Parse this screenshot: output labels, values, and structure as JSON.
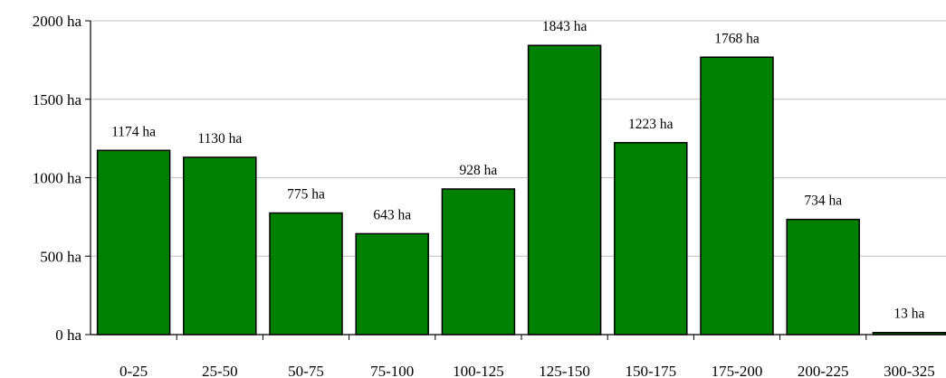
{
  "chart_data": {
    "type": "bar",
    "categories": [
      "0-25",
      "25-50",
      "50-75",
      "75-100",
      "100-125",
      "125-150",
      "150-175",
      "175-200",
      "200-225",
      "300-325"
    ],
    "values": [
      1174,
      1130,
      775,
      643,
      928,
      1843,
      1223,
      1768,
      734,
      13
    ],
    "data_labels": [
      "1174 ha",
      "1130 ha",
      "775 ha",
      "643 ha",
      "928 ha",
      "1843 ha",
      "1223 ha",
      "1768 ha",
      "734 ha",
      "13 ha"
    ],
    "y_ticks": [
      0,
      500,
      1000,
      1500,
      2000
    ],
    "y_tick_labels": [
      "0 ha",
      "500 ha",
      "1000 ha",
      "1500 ha",
      "2000 ha"
    ],
    "ylim": [
      0,
      2000
    ],
    "title": "",
    "xlabel": "",
    "ylabel": "",
    "grid": "horizontal",
    "legend": "none",
    "bar_color": "#008000",
    "bar_edge_color": "#000000",
    "grid_color": "#c0c0c0"
  }
}
